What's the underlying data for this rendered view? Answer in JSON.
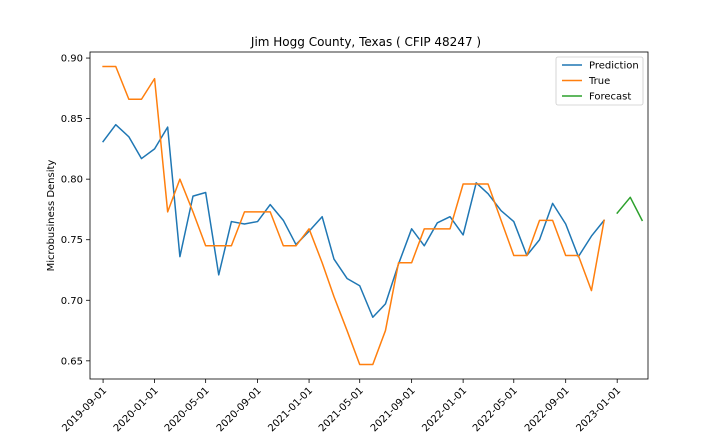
{
  "chart_data": {
    "type": "line",
    "title": "Jim Hogg County, Texas ( CFIP 48247 )",
    "xlabel": "",
    "ylabel": "Microbusiness Density",
    "ylim": [
      0.635,
      0.905
    ],
    "xlim": [
      "2019-08-01",
      "2023-03-15"
    ],
    "grid": false,
    "legend_position": "top-right",
    "x_ticks": [
      "2019-09-01",
      "2020-01-01",
      "2020-05-01",
      "2020-09-01",
      "2021-01-01",
      "2021-05-01",
      "2021-09-01",
      "2022-01-01",
      "2022-05-01",
      "2022-09-01",
      "2023-01-01"
    ],
    "y_ticks": [
      "0.65",
      "0.70",
      "0.75",
      "0.80",
      "0.85",
      "0.90"
    ],
    "series": [
      {
        "name": "Prediction",
        "color": "#1f77b4",
        "x": [
          "2019-09-01",
          "2019-10-01",
          "2019-11-01",
          "2019-12-01",
          "2020-01-01",
          "2020-02-01",
          "2020-03-01",
          "2020-04-01",
          "2020-05-01",
          "2020-06-01",
          "2020-07-01",
          "2020-08-01",
          "2020-09-01",
          "2020-10-01",
          "2020-11-01",
          "2020-12-01",
          "2021-01-01",
          "2021-02-01",
          "2021-03-01",
          "2021-04-01",
          "2021-05-01",
          "2021-06-01",
          "2021-07-01",
          "2021-08-01",
          "2021-09-01",
          "2021-10-01",
          "2021-11-01",
          "2021-12-01",
          "2022-01-01",
          "2022-02-01",
          "2022-03-01",
          "2022-04-01",
          "2022-05-01",
          "2022-06-01",
          "2022-07-01",
          "2022-08-01",
          "2022-09-01",
          "2022-10-01",
          "2022-11-01",
          "2022-12-01"
        ],
        "values": [
          0.831,
          0.845,
          0.835,
          0.817,
          0.825,
          0.843,
          0.736,
          0.786,
          0.789,
          0.721,
          0.765,
          0.763,
          0.765,
          0.779,
          0.766,
          0.746,
          0.757,
          0.769,
          0.734,
          0.718,
          0.712,
          0.686,
          0.697,
          0.73,
          0.759,
          0.745,
          0.764,
          0.769,
          0.754,
          0.797,
          0.788,
          0.774,
          0.765,
          0.737,
          0.75,
          0.78,
          0.763,
          0.736,
          0.753,
          0.766
        ]
      },
      {
        "name": "True",
        "color": "#ff7f0e",
        "x": [
          "2019-09-01",
          "2019-10-01",
          "2019-11-01",
          "2019-12-01",
          "2020-01-01",
          "2020-02-01",
          "2020-03-01",
          "2020-04-01",
          "2020-05-01",
          "2020-06-01",
          "2020-07-01",
          "2020-08-01",
          "2020-09-01",
          "2020-10-01",
          "2020-11-01",
          "2020-12-01",
          "2021-01-01",
          "2021-02-01",
          "2021-03-01",
          "2021-04-01",
          "2021-05-01",
          "2021-06-01",
          "2021-07-01",
          "2021-08-01",
          "2021-09-01",
          "2021-10-01",
          "2021-11-01",
          "2021-12-01",
          "2022-01-01",
          "2022-02-01",
          "2022-03-01",
          "2022-04-01",
          "2022-05-01",
          "2022-06-01",
          "2022-07-01",
          "2022-08-01",
          "2022-09-01",
          "2022-10-01",
          "2022-11-01",
          "2022-12-01"
        ],
        "values": [
          0.893,
          0.893,
          0.866,
          0.866,
          0.883,
          0.773,
          0.8,
          0.773,
          0.745,
          0.745,
          0.745,
          0.773,
          0.773,
          0.773,
          0.745,
          0.745,
          0.759,
          0.731,
          0.703,
          0.675,
          0.647,
          0.647,
          0.675,
          0.731,
          0.731,
          0.759,
          0.759,
          0.759,
          0.796,
          0.796,
          0.796,
          0.766,
          0.737,
          0.737,
          0.766,
          0.766,
          0.737,
          0.737,
          0.708,
          0.766
        ]
      },
      {
        "name": "Forecast",
        "color": "#2ca02c",
        "x": [
          "2023-01-01",
          "2023-02-01",
          "2023-03-01"
        ],
        "values": [
          0.772,
          0.785,
          0.766
        ]
      }
    ]
  }
}
